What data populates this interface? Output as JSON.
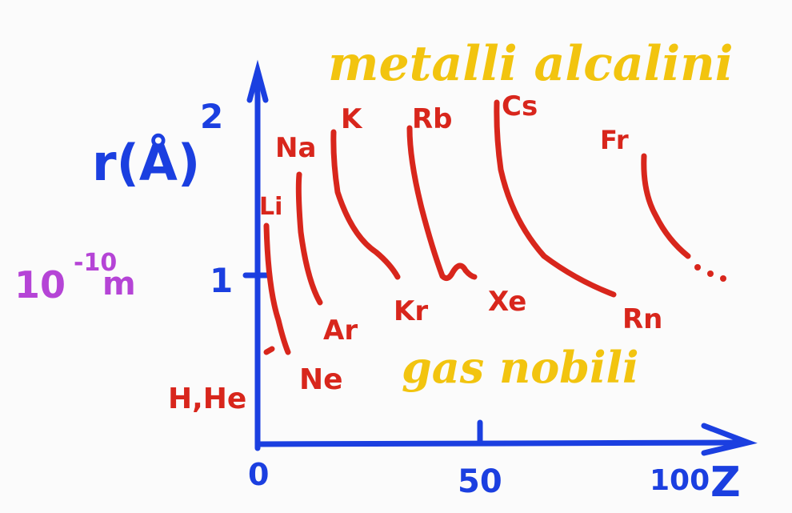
{
  "title": "metalli alcalini",
  "subtitle": "gas nobili",
  "y_axis": {
    "label": "r(Å)",
    "exponent": "2",
    "tick_1": "1",
    "unit_base": "10",
    "unit_exp": "-10",
    "unit_m": "m"
  },
  "x_axis": {
    "label": "Z",
    "tick_0": "0",
    "tick_50": "50",
    "tick_100": "100"
  },
  "alkali_labels": [
    "Li",
    "Na",
    "K",
    "Rb",
    "Cs",
    "Fr"
  ],
  "noble_labels": [
    "H,He",
    "Ne",
    "Ar",
    "Kr",
    "Xe",
    "Rn"
  ],
  "ellipsis": "...",
  "colors": {
    "axis": "#1b3fe0",
    "curves": "#d8261c",
    "title": "#f2c40f",
    "unit": "#b544d6"
  }
}
